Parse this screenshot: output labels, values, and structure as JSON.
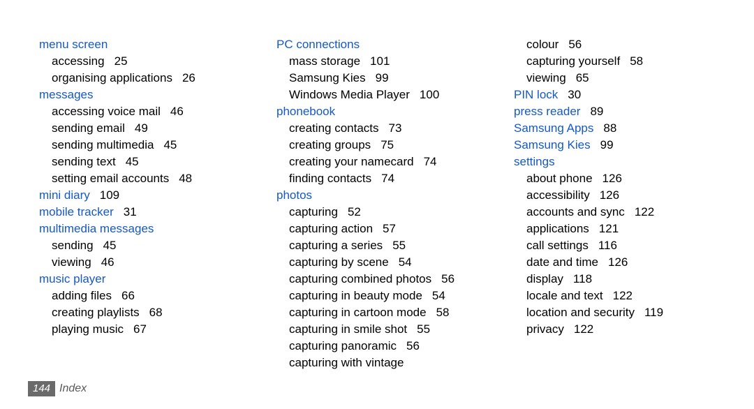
{
  "footer": {
    "page": "144",
    "label": "Index"
  },
  "columns": [
    [
      {
        "type": "head",
        "text": "menu screen"
      },
      {
        "type": "sub",
        "text": "accessing",
        "pg": "25"
      },
      {
        "type": "sub",
        "text": "organising applications",
        "pg": "26"
      },
      {
        "type": "head",
        "text": "messages"
      },
      {
        "type": "sub",
        "text": "accessing voice mail",
        "pg": "46"
      },
      {
        "type": "sub",
        "text": "sending email",
        "pg": "49"
      },
      {
        "type": "sub",
        "text": "sending multimedia",
        "pg": "45"
      },
      {
        "type": "sub",
        "text": "sending text",
        "pg": "45"
      },
      {
        "type": "sub",
        "text": "setting email accounts",
        "pg": "48"
      },
      {
        "type": "head",
        "text": "mini diary",
        "pg": "109"
      },
      {
        "type": "head",
        "text": "mobile tracker",
        "pg": "31"
      },
      {
        "type": "head",
        "text": "multimedia messages"
      },
      {
        "type": "sub",
        "text": "sending",
        "pg": "45"
      },
      {
        "type": "sub",
        "text": "viewing",
        "pg": "46"
      },
      {
        "type": "head",
        "text": "music player"
      },
      {
        "type": "sub",
        "text": "adding files",
        "pg": "66"
      },
      {
        "type": "sub",
        "text": "creating playlists",
        "pg": "68"
      },
      {
        "type": "sub",
        "text": "playing music",
        "pg": "67"
      }
    ],
    [
      {
        "type": "head",
        "text": "PC connections"
      },
      {
        "type": "sub",
        "text": "mass storage",
        "pg": "101"
      },
      {
        "type": "sub",
        "text": "Samsung Kies",
        "pg": "99"
      },
      {
        "type": "sub",
        "text": "Windows Media Player",
        "pg": "100"
      },
      {
        "type": "head",
        "text": "phonebook"
      },
      {
        "type": "sub",
        "text": "creating contacts",
        "pg": "73"
      },
      {
        "type": "sub",
        "text": "creating groups",
        "pg": "75"
      },
      {
        "type": "sub",
        "text": "creating your namecard",
        "pg": "74"
      },
      {
        "type": "sub",
        "text": "finding contacts",
        "pg": "74"
      },
      {
        "type": "head",
        "text": "photos"
      },
      {
        "type": "sub",
        "text": "capturing",
        "pg": "52"
      },
      {
        "type": "sub",
        "text": "capturing action",
        "pg": "57"
      },
      {
        "type": "sub",
        "text": "capturing a series",
        "pg": "55"
      },
      {
        "type": "sub",
        "text": "capturing by scene",
        "pg": "54"
      },
      {
        "type": "sub",
        "text": "capturing combined photos",
        "pg": "56"
      },
      {
        "type": "sub",
        "text": "capturing in beauty mode",
        "pg": "54"
      },
      {
        "type": "sub",
        "text": "capturing in cartoon mode",
        "pg": "58"
      },
      {
        "type": "sub",
        "text": "capturing in smile shot",
        "pg": "55"
      },
      {
        "type": "sub",
        "text": "capturing panoramic",
        "pg": "56"
      },
      {
        "type": "sub",
        "text": "capturing with vintage"
      }
    ],
    [
      {
        "type": "sub",
        "text": "colour",
        "pg": "56"
      },
      {
        "type": "sub",
        "text": "capturing yourself",
        "pg": "58"
      },
      {
        "type": "sub",
        "text": "viewing",
        "pg": "65"
      },
      {
        "type": "head",
        "text": "PIN lock",
        "pg": "30"
      },
      {
        "type": "head",
        "text": "press reader",
        "pg": "89"
      },
      {
        "type": "head",
        "text": "Samsung Apps",
        "pg": "88"
      },
      {
        "type": "head",
        "text": "Samsung Kies",
        "pg": "99"
      },
      {
        "type": "head",
        "text": "settings"
      },
      {
        "type": "sub",
        "text": "about phone",
        "pg": "126"
      },
      {
        "type": "sub",
        "text": "accessibility",
        "pg": "126"
      },
      {
        "type": "sub",
        "text": "accounts and sync",
        "pg": "122"
      },
      {
        "type": "sub",
        "text": "applications",
        "pg": "121"
      },
      {
        "type": "sub",
        "text": "call settings",
        "pg": "116"
      },
      {
        "type": "sub",
        "text": "date and time",
        "pg": "126"
      },
      {
        "type": "sub",
        "text": "display",
        "pg": "118"
      },
      {
        "type": "sub",
        "text": "locale and text",
        "pg": "122"
      },
      {
        "type": "sub",
        "text": "location and security",
        "pg": "119"
      },
      {
        "type": "sub",
        "text": "privacy",
        "pg": "122"
      }
    ]
  ]
}
